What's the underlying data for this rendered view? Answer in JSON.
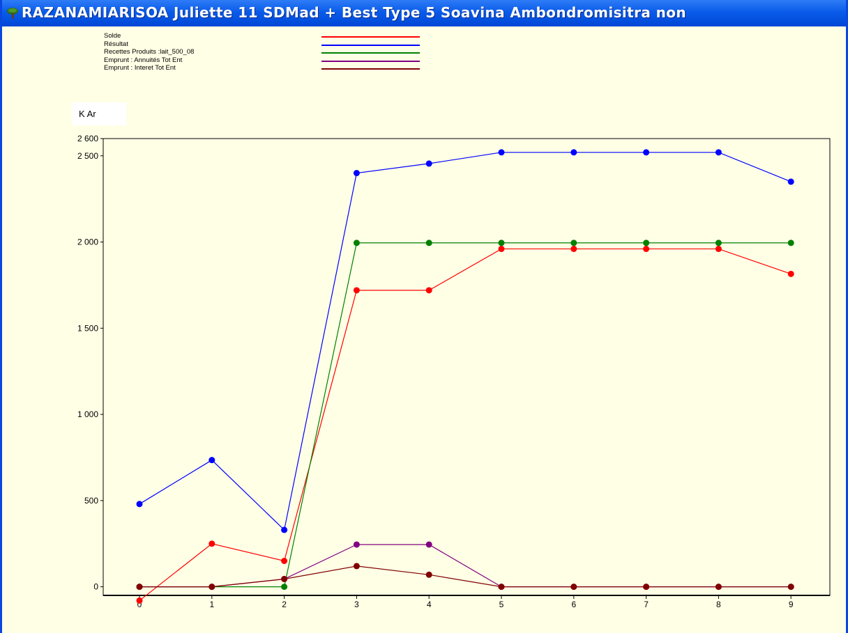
{
  "window": {
    "title": "RAZANAMIARISOA Juliette 11  SDMad + Best  Type 5  Soavina  Ambondromisitra  non",
    "title_icon": "tree-icon",
    "titlebar_color": "#0a5bea"
  },
  "chart_data": {
    "type": "line",
    "unit_label": "K Ar",
    "categories": [
      "0",
      "1",
      "2",
      "3",
      "4",
      "5",
      "6",
      "7",
      "8",
      "9"
    ],
    "ylim": [
      -50,
      2600
    ],
    "yticks": [
      0,
      500,
      1000,
      1500,
      2000,
      2500,
      2600
    ],
    "ytick_labels": [
      "0",
      "500",
      "1 000",
      "1 500",
      "2 000",
      "2 500",
      "2 600"
    ],
    "legend_position": "top-left",
    "grid": false,
    "series": [
      {
        "name": "Solde",
        "color": "#ff0000",
        "values": [
          -80,
          250,
          150,
          1720,
          1720,
          1960,
          1960,
          1960,
          1960,
          1815
        ]
      },
      {
        "name": "Résultat",
        "color": "#0000ff",
        "values": [
          480,
          735,
          330,
          2400,
          2455,
          2520,
          2520,
          2520,
          2520,
          2350
        ]
      },
      {
        "name": "Recettes Produits :lait_500_08",
        "color": "#008000",
        "values": [
          0,
          0,
          0,
          1995,
          1995,
          1995,
          1995,
          1995,
          1995,
          1995
        ]
      },
      {
        "name": "Emprunt : Annuités     Tot Ent",
        "color": "#800080",
        "values": [
          0,
          0,
          45,
          245,
          245,
          0,
          0,
          0,
          0,
          0
        ]
      },
      {
        "name": "Emprunt : Interet      Tot Ent",
        "color": "#800000",
        "values": [
          0,
          0,
          45,
          120,
          70,
          0,
          0,
          0,
          0,
          0
        ]
      }
    ]
  }
}
